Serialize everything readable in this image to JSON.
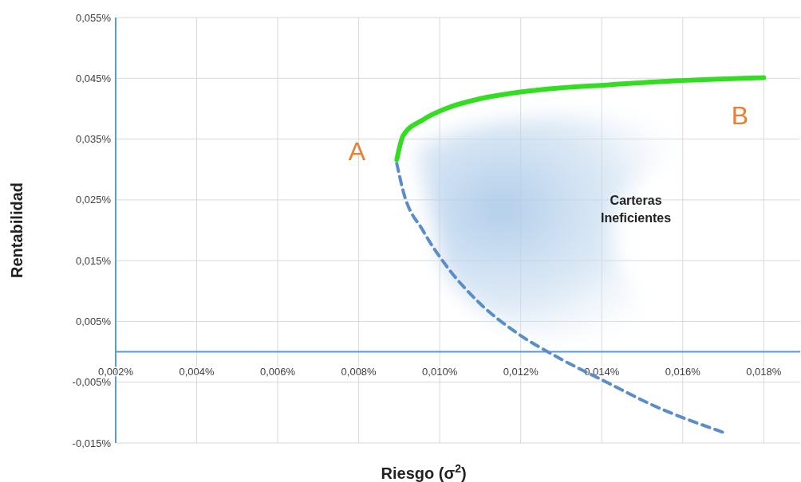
{
  "chart_data": {
    "type": "line",
    "xlabel": "Riesgo  (σ$^{2}$)",
    "ylabel": "Rentabilidad",
    "xlim": [
      0.002,
      0.0189
    ],
    "ylim": [
      -0.015,
      0.055
    ],
    "xticks": [
      {
        "value": 0.002,
        "label": "0,002%"
      },
      {
        "value": 0.004,
        "label": "0,004%"
      },
      {
        "value": 0.006,
        "label": "0,006%"
      },
      {
        "value": 0.008,
        "label": "0,008%"
      },
      {
        "value": 0.01,
        "label": "0,010%"
      },
      {
        "value": 0.012,
        "label": "0,012%"
      },
      {
        "value": 0.014,
        "label": "0,014%"
      },
      {
        "value": 0.016,
        "label": "0,016%"
      },
      {
        "value": 0.018,
        "label": "0,018%"
      }
    ],
    "yticks": [
      {
        "value": -0.015,
        "label": "-0,015%"
      },
      {
        "value": -0.005,
        "label": "-0,005%"
      },
      {
        "value": 0.005,
        "label": "0,005%"
      },
      {
        "value": 0.015,
        "label": "0,015%"
      },
      {
        "value": 0.025,
        "label": "0,025%"
      },
      {
        "value": 0.035,
        "label": "0,035%"
      },
      {
        "value": 0.045,
        "label": "0,045%"
      },
      {
        "value": 0.055,
        "label": "0,055%"
      }
    ],
    "grid": true,
    "marker": "none",
    "series": [
      {
        "color": "#33dd22",
        "line_style": "solid",
        "x": [
          0.00894,
          0.0091,
          0.00959,
          0.01018,
          0.01097,
          0.01195,
          0.01294,
          0.01412,
          0.01589,
          0.018
        ],
        "values": [
          0.0316,
          0.0356,
          0.0382,
          0.0401,
          0.0416,
          0.0427,
          0.0434,
          0.0439,
          0.0446,
          0.0451
        ]
      },
      {
        "color": "#5b8ec9",
        "line_style": "dashed",
        "x": [
          0.00894,
          0.0091,
          0.00959,
          0.01018,
          0.01097,
          0.01195,
          0.01294,
          0.01412,
          0.0153,
          0.01698
        ],
        "values": [
          0.031,
          0.0264,
          0.0199,
          0.014,
          0.0081,
          0.0029,
          -0.001,
          -0.005,
          -0.0089,
          -0.0132
        ]
      }
    ],
    "annotations": [
      {
        "text": "A",
        "x": 0.00894,
        "y": 0.0316
      },
      {
        "text": "B",
        "x": 0.018,
        "y": 0.0451
      },
      "Carteras\nIneficientes"
    ]
  }
}
